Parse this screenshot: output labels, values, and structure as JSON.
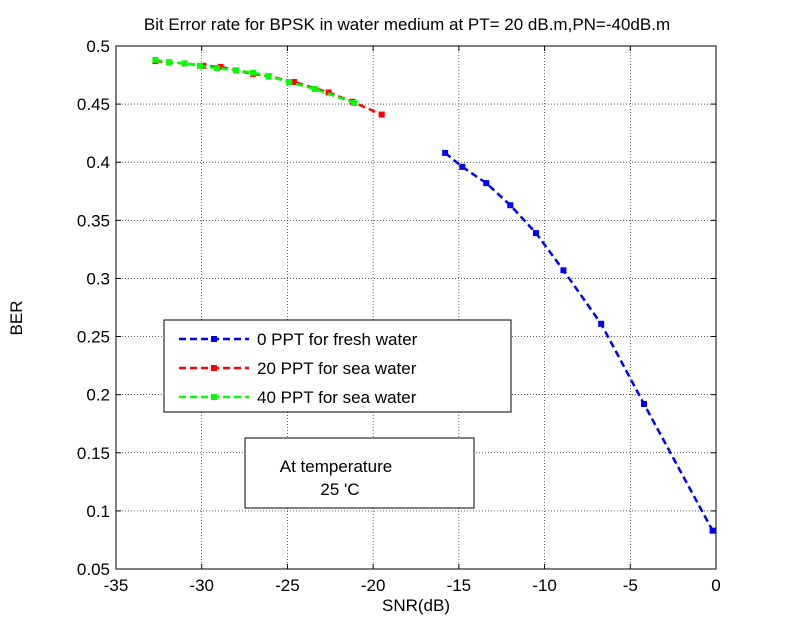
{
  "chart_data": {
    "type": "line",
    "title": "Bit Error rate  for BPSK in water medium at PT= 20 dB.m,PN=-40dB.m",
    "xlabel": "SNR(dB)",
    "ylabel": "BER",
    "xlim": [
      -35,
      0
    ],
    "ylim": [
      0.05,
      0.5
    ],
    "x_ticks": [
      -35,
      -30,
      -25,
      -20,
      -15,
      -10,
      -5,
      0
    ],
    "y_ticks": [
      0.05,
      0.1,
      0.15,
      0.2,
      0.25,
      0.3,
      0.35,
      0.4,
      0.45,
      0.5
    ],
    "x_tick_labels": [
      "-35",
      "-30",
      "-25",
      "-20",
      "-15",
      "-10",
      "-5",
      "0"
    ],
    "y_tick_labels": [
      "0.05",
      "0.1",
      "0.15",
      "0.2",
      "0.25",
      "0.3",
      "0.35",
      "0.4",
      "0.45",
      "0.5"
    ],
    "grid": true,
    "legend_position": "center-left",
    "series": [
      {
        "name": "0 PPT for fresh water",
        "color": "#0000ff",
        "x": [
          -15.8,
          -14.8,
          -13.4,
          -12.0,
          -10.5,
          -8.9,
          -6.7,
          -4.2,
          -0.2
        ],
        "y": [
          0.408,
          0.396,
          0.382,
          0.363,
          0.339,
          0.307,
          0.261,
          0.192,
          0.083
        ]
      },
      {
        "name": "20 PPT for sea water",
        "color": "#ff0000",
        "x": [
          -32.7,
          -31.9,
          -31.0,
          -29.9,
          -28.9,
          -28.0,
          -27.0,
          -26.1,
          -24.6,
          -22.6,
          -21.2,
          -19.5
        ],
        "y": [
          0.487,
          0.486,
          0.485,
          0.483,
          0.482,
          0.479,
          0.476,
          0.474,
          0.469,
          0.46,
          0.452,
          0.441
        ]
      },
      {
        "name": "40 PPT  for sea water",
        "color": "#00ff00",
        "x": [
          -32.7,
          -31.9,
          -31.0,
          -30.1,
          -29.1,
          -28.0,
          -27.0,
          -26.1,
          -24.9,
          -23.4,
          -21.1
        ],
        "y": [
          0.488,
          0.486,
          0.485,
          0.483,
          0.481,
          0.479,
          0.477,
          0.474,
          0.469,
          0.463,
          0.451
        ]
      }
    ],
    "annotation": {
      "line1": "At temperature",
      "line2": "25 'C"
    }
  }
}
